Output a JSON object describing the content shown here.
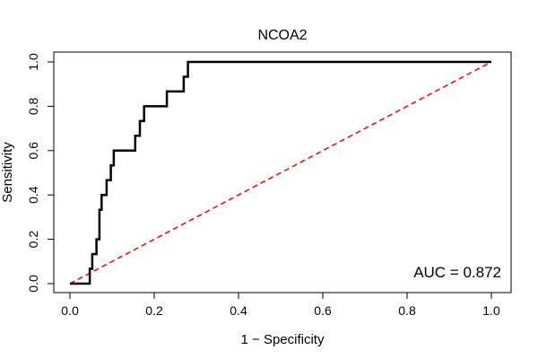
{
  "chart_data": {
    "type": "line",
    "title": "NCOA2",
    "xlabel": "1 − Specificity",
    "ylabel": "Sensitivity",
    "xlim": [
      0,
      1
    ],
    "ylim": [
      0,
      1
    ],
    "x_ticks": [
      "0.0",
      "0.2",
      "0.4",
      "0.6",
      "0.8",
      "1.0"
    ],
    "y_ticks": [
      "0.0",
      "0.2",
      "0.4",
      "0.6",
      "0.8",
      "1.0"
    ],
    "grid": false,
    "annotation": "AUC = 0.872",
    "colors": {
      "roc": "#000000",
      "reference": "#ff0000"
    },
    "series": [
      {
        "style": "solid",
        "x": [
          0.0,
          0.047,
          0.047,
          0.053,
          0.053,
          0.063,
          0.063,
          0.07,
          0.07,
          0.075,
          0.075,
          0.087,
          0.087,
          0.097,
          0.097,
          0.104,
          0.104,
          0.155,
          0.155,
          0.166,
          0.166,
          0.176,
          0.176,
          0.23,
          0.23,
          0.27,
          0.27,
          0.28,
          0.28,
          1.0
        ],
        "y": [
          0.0,
          0.0,
          0.067,
          0.067,
          0.133,
          0.133,
          0.2,
          0.2,
          0.333,
          0.333,
          0.4,
          0.4,
          0.467,
          0.467,
          0.533,
          0.533,
          0.6,
          0.6,
          0.667,
          0.667,
          0.733,
          0.733,
          0.8,
          0.8,
          0.867,
          0.867,
          0.933,
          0.933,
          1.0,
          1.0
        ]
      },
      {
        "style": "dashed",
        "x": [
          0.0,
          1.0
        ],
        "y": [
          0.0,
          1.0
        ]
      }
    ]
  }
}
